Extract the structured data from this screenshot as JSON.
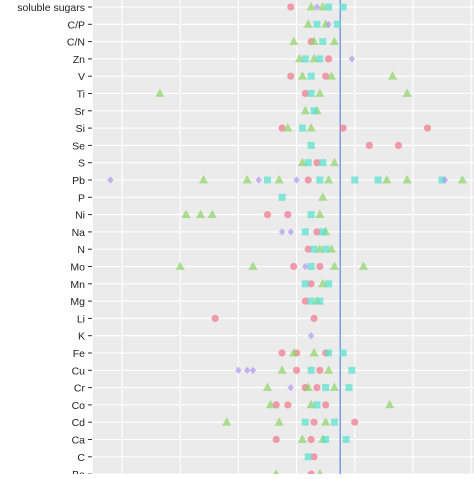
{
  "chart_data": {
    "type": "scatter",
    "title": "",
    "xlabel": "",
    "ylabel": "",
    "reference_line": 1.0,
    "xlim": [
      -7.5,
      5.6
    ],
    "grid": true,
    "legend": "none",
    "categories": [
      "soluble sugars",
      "C/P",
      "C/N",
      "Zn",
      "V",
      "Ti",
      "Sr",
      "Si",
      "Se",
      "S",
      "Pb",
      "P",
      "Ni",
      "Na",
      "N",
      "Mo",
      "Mn",
      "Mg",
      "Li",
      "K",
      "Fe",
      "Cu",
      "Cr",
      "Co",
      "Cd",
      "Ca",
      "C",
      "Ba"
    ],
    "series": [
      {
        "color": "#f0788a",
        "shape": "circle",
        "points": [
          {
            "y": "soluble sugars",
            "x": -0.7
          },
          {
            "y": "C/N",
            "x": 0.0
          },
          {
            "y": "Zn",
            "x": 0.6
          },
          {
            "y": "V",
            "x": -0.7
          },
          {
            "y": "V",
            "x": 0.5
          },
          {
            "y": "Ti",
            "x": -0.2
          },
          {
            "y": "Si",
            "x": -1.0
          },
          {
            "y": "Si",
            "x": 1.1
          },
          {
            "y": "Si",
            "x": 4.0
          },
          {
            "y": "Se",
            "x": 2.0
          },
          {
            "y": "Se",
            "x": 3.0
          },
          {
            "y": "S",
            "x": 0.2
          },
          {
            "y": "Pb",
            "x": -0.1
          },
          {
            "y": "Ni",
            "x": -1.5
          },
          {
            "y": "Ni",
            "x": -0.8
          },
          {
            "y": "Na",
            "x": 0.2
          },
          {
            "y": "N",
            "x": -0.1
          },
          {
            "y": "Mo",
            "x": -0.6
          },
          {
            "y": "Mo",
            "x": 0.3
          },
          {
            "y": "Mn",
            "x": 0.0
          },
          {
            "y": "Mg",
            "x": -0.2
          },
          {
            "y": "Li",
            "x": -3.3
          },
          {
            "y": "Li",
            "x": 0.1
          },
          {
            "y": "Fe",
            "x": -1.0
          },
          {
            "y": "Fe",
            "x": -0.5
          },
          {
            "y": "Fe",
            "x": 0.5
          },
          {
            "y": "Cu",
            "x": -0.5
          },
          {
            "y": "Cu",
            "x": 0.3
          },
          {
            "y": "Cr",
            "x": -0.2
          },
          {
            "y": "Cr",
            "x": 0.2
          },
          {
            "y": "Co",
            "x": -1.2
          },
          {
            "y": "Co",
            "x": -0.8
          },
          {
            "y": "Co",
            "x": 0.5
          },
          {
            "y": "Cd",
            "x": 0.1
          },
          {
            "y": "Cd",
            "x": 1.5
          },
          {
            "y": "Ca",
            "x": -1.2
          },
          {
            "y": "Ca",
            "x": 0.0
          },
          {
            "y": "C",
            "x": 0.1
          },
          {
            "y": "Ba",
            "x": 0.0
          }
        ]
      },
      {
        "color": "#8fd46a",
        "shape": "triangle",
        "points": [
          {
            "y": "soluble sugars",
            "x": 0.0
          },
          {
            "y": "soluble sugars",
            "x": 0.4
          },
          {
            "y": "C/P",
            "x": -0.1
          },
          {
            "y": "C/P",
            "x": 0.5
          },
          {
            "y": "C/N",
            "x": -0.6
          },
          {
            "y": "C/N",
            "x": 0.1
          },
          {
            "y": "C/N",
            "x": 0.8
          },
          {
            "y": "Zn",
            "x": -0.4
          },
          {
            "y": "Zn",
            "x": 0.1
          },
          {
            "y": "V",
            "x": -0.3
          },
          {
            "y": "V",
            "x": 0.7
          },
          {
            "y": "V",
            "x": 2.8
          },
          {
            "y": "Ti",
            "x": -5.2
          },
          {
            "y": "Ti",
            "x": 0.3
          },
          {
            "y": "Ti",
            "x": 3.3
          },
          {
            "y": "Sr",
            "x": -0.2
          },
          {
            "y": "Sr",
            "x": 0.2
          },
          {
            "y": "Si",
            "x": -0.8
          },
          {
            "y": "Si",
            "x": 0.0
          },
          {
            "y": "S",
            "x": -0.3
          },
          {
            "y": "S",
            "x": 0.8
          },
          {
            "y": "Pb",
            "x": -3.7
          },
          {
            "y": "Pb",
            "x": -2.2
          },
          {
            "y": "Pb",
            "x": -1.1
          },
          {
            "y": "Pb",
            "x": 0.6
          },
          {
            "y": "Pb",
            "x": 2.6
          },
          {
            "y": "Pb",
            "x": 3.3
          },
          {
            "y": "Pb",
            "x": 5.2
          },
          {
            "y": "P",
            "x": 0.4
          },
          {
            "y": "Ni",
            "x": -4.3
          },
          {
            "y": "Ni",
            "x": -3.8
          },
          {
            "y": "Ni",
            "x": -3.4
          },
          {
            "y": "Ni",
            "x": 0.3
          },
          {
            "y": "Na",
            "x": 0.5
          },
          {
            "y": "N",
            "x": 0.3
          },
          {
            "y": "N",
            "x": 0.7
          },
          {
            "y": "Mo",
            "x": -4.5
          },
          {
            "y": "Mo",
            "x": -2.0
          },
          {
            "y": "Mo",
            "x": 0.8
          },
          {
            "y": "Mo",
            "x": 1.8
          },
          {
            "y": "Mn",
            "x": 0.4
          },
          {
            "y": "Mg",
            "x": 0.2
          },
          {
            "y": "Fe",
            "x": -0.6
          },
          {
            "y": "Fe",
            "x": 0.1
          },
          {
            "y": "Cu",
            "x": -1.0
          },
          {
            "y": "Cu",
            "x": 0.6
          },
          {
            "y": "Cr",
            "x": -1.5
          },
          {
            "y": "Cr",
            "x": -0.1
          },
          {
            "y": "Cr",
            "x": 0.8
          },
          {
            "y": "Co",
            "x": -1.4
          },
          {
            "y": "Co",
            "x": 0.0
          },
          {
            "y": "Co",
            "x": 2.7
          },
          {
            "y": "Cd",
            "x": -2.9
          },
          {
            "y": "Cd",
            "x": -1.1
          },
          {
            "y": "Cd",
            "x": 0.5
          },
          {
            "y": "Ca",
            "x": -0.3
          },
          {
            "y": "Ca",
            "x": 0.4
          },
          {
            "y": "Ba",
            "x": -1.2
          },
          {
            "y": "Ba",
            "x": 0.3
          }
        ]
      },
      {
        "color": "#56e0cf",
        "shape": "square",
        "points": [
          {
            "y": "soluble sugars",
            "x": 0.6
          },
          {
            "y": "soluble sugars",
            "x": 1.1
          },
          {
            "y": "C/P",
            "x": 0.2
          },
          {
            "y": "C/P",
            "x": 0.9
          },
          {
            "y": "C/N",
            "x": 0.4
          },
          {
            "y": "Zn",
            "x": -0.2
          },
          {
            "y": "Zn",
            "x": 0.3
          },
          {
            "y": "V",
            "x": 0.0
          },
          {
            "y": "Ti",
            "x": 0.0
          },
          {
            "y": "Sr",
            "x": 0.1
          },
          {
            "y": "Si",
            "x": -0.3
          },
          {
            "y": "Se",
            "x": 0.0
          },
          {
            "y": "S",
            "x": -0.1
          },
          {
            "y": "S",
            "x": 0.4
          },
          {
            "y": "Pb",
            "x": -1.5
          },
          {
            "y": "Pb",
            "x": 0.3
          },
          {
            "y": "Pb",
            "x": 1.5
          },
          {
            "y": "Pb",
            "x": 2.3
          },
          {
            "y": "Pb",
            "x": 4.5
          },
          {
            "y": "P",
            "x": -1.0
          },
          {
            "y": "Ni",
            "x": 0.0
          },
          {
            "y": "Na",
            "x": -0.2
          },
          {
            "y": "Na",
            "x": 0.4
          },
          {
            "y": "N",
            "x": 0.1
          },
          {
            "y": "N",
            "x": 0.5
          },
          {
            "y": "Mo",
            "x": 0.0
          },
          {
            "y": "Mn",
            "x": -0.2
          },
          {
            "y": "Mn",
            "x": 0.6
          },
          {
            "y": "Mg",
            "x": 0.0
          },
          {
            "y": "Mg",
            "x": 0.3
          },
          {
            "y": "Fe",
            "x": 0.6
          },
          {
            "y": "Fe",
            "x": 1.1
          },
          {
            "y": "Cu",
            "x": 0.0
          },
          {
            "y": "Cu",
            "x": 1.4
          },
          {
            "y": "Cr",
            "x": 0.5
          },
          {
            "y": "Cr",
            "x": 1.3
          },
          {
            "y": "Co",
            "x": 0.2
          },
          {
            "y": "Cd",
            "x": -0.2
          },
          {
            "y": "Cd",
            "x": 0.8
          },
          {
            "y": "Ca",
            "x": 0.5
          },
          {
            "y": "Ca",
            "x": 1.2
          },
          {
            "y": "C",
            "x": -0.1
          }
        ]
      },
      {
        "color": "#b397ee",
        "shape": "diamond",
        "points": [
          {
            "y": "soluble sugars",
            "x": 0.2
          },
          {
            "y": "C/P",
            "x": 0.6
          },
          {
            "y": "Zn",
            "x": 1.4
          },
          {
            "y": "Pb",
            "x": -6.9
          },
          {
            "y": "Pb",
            "x": -1.8
          },
          {
            "y": "Pb",
            "x": -0.5
          },
          {
            "y": "Pb",
            "x": 4.6
          },
          {
            "y": "Na",
            "x": -1.0
          },
          {
            "y": "Na",
            "x": -0.7
          },
          {
            "y": "Mo",
            "x": -0.2
          },
          {
            "y": "K",
            "x": 0.0
          },
          {
            "y": "Cu",
            "x": -2.5
          },
          {
            "y": "Cu",
            "x": -2.2
          },
          {
            "y": "Cu",
            "x": -2.0
          },
          {
            "y": "Cr",
            "x": -0.7
          }
        ]
      }
    ]
  }
}
